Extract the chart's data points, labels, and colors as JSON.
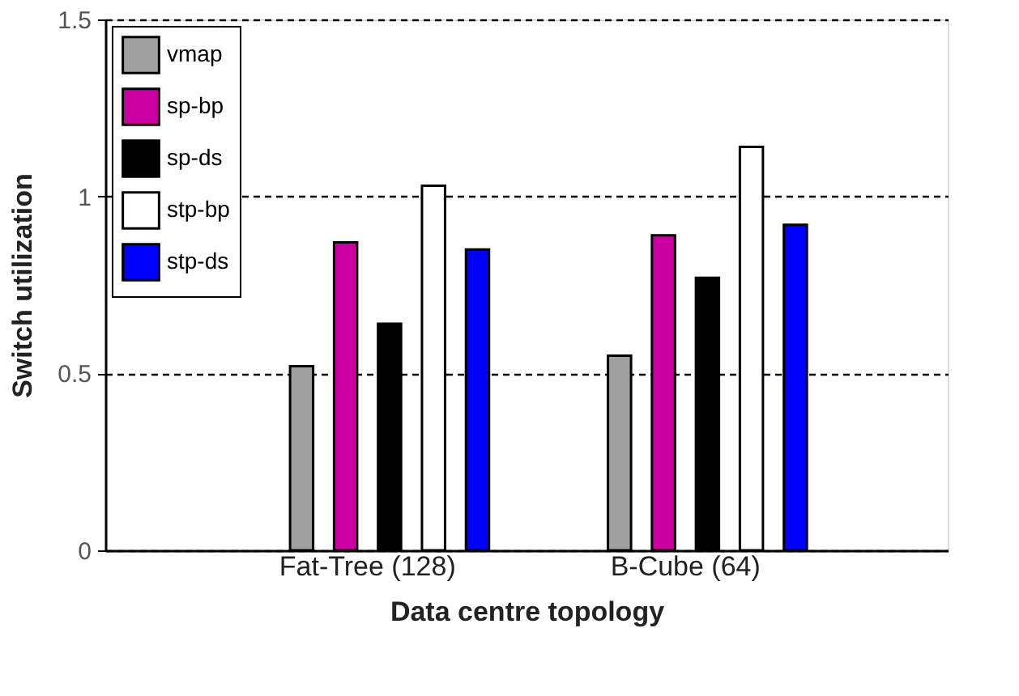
{
  "chart_data": {
    "type": "bar",
    "xlabel": "Data centre topology",
    "ylabel": "Switch utilization",
    "categories": [
      "Fat-Tree (128)",
      "B-Cube (64)"
    ],
    "series": [
      {
        "name": "vmap",
        "color": "#a0a0a0",
        "values": [
          0.52,
          0.55
        ]
      },
      {
        "name": "sp-bp",
        "color": "#cc00a0",
        "values": [
          0.87,
          0.89
        ]
      },
      {
        "name": "sp-ds",
        "color": "#000000",
        "values": [
          0.64,
          0.77
        ]
      },
      {
        "name": "stp-bp",
        "color": "#ffffff",
        "values": [
          1.03,
          1.14
        ]
      },
      {
        "name": "stp-ds",
        "color": "#0000ff",
        "values": [
          0.85,
          0.92
        ]
      }
    ],
    "ylim": [
      0,
      1.5
    ],
    "yticks": [
      0,
      0.5,
      1,
      1.5
    ],
    "grid": "y",
    "legend": "top left"
  }
}
